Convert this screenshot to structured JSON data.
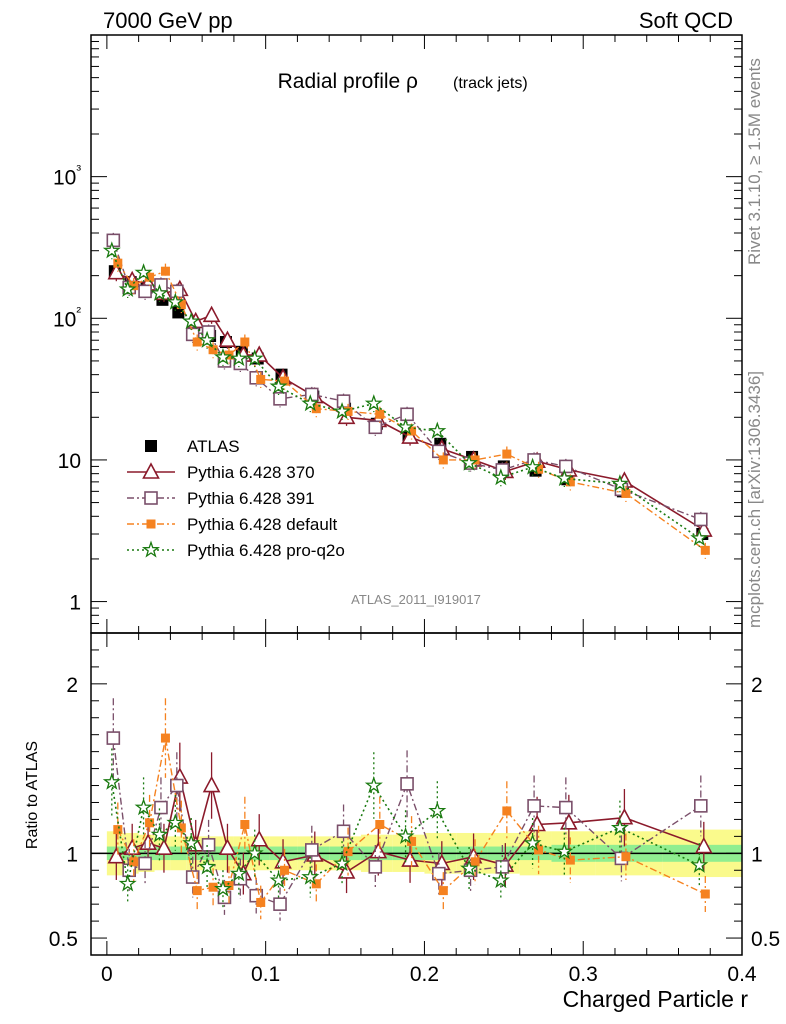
{
  "header": {
    "left": "7000 GeV pp",
    "right": "Soft QCD"
  },
  "side": {
    "top": "Rivet 3.1.10, ≥ 1.5M events",
    "bottom": "mcplots.cern.ch [arXiv:1306.3436]"
  },
  "plot_title": {
    "main": "Radial profile ρ",
    "sub": "(track jets)"
  },
  "analysis_id": "ATLAS_2011_I919017",
  "colors": {
    "ATLAS": "#000000",
    "p370": "#8b1a2b",
    "p391": "#7a4f6a",
    "pdefault": "#f58220",
    "pq2o": "#1a7a10",
    "band_yellow": "#fafa8c",
    "band_green": "#90ee90"
  },
  "chart_data": [
    {
      "type": "scatter",
      "panel": "main",
      "xlabel": "Charged Particle r",
      "ylabel": "",
      "xlim": [
        -0.01,
        0.4
      ],
      "ylim": [
        0.6,
        10000
      ],
      "yscale": "log",
      "xticks": [
        0,
        0.1,
        0.2,
        0.3,
        0.4
      ],
      "xtick_labels": [
        "0",
        "0.1",
        "0.2",
        "0.3",
        "0.4"
      ],
      "ytick_labels": [
        "1",
        "10",
        "10²",
        "10³"
      ],
      "yticks": [
        1,
        10,
        100,
        1000
      ],
      "legend_position": "bottom-left",
      "x": [
        0.005,
        0.015,
        0.025,
        0.035,
        0.045,
        0.055,
        0.065,
        0.075,
        0.085,
        0.095,
        0.11,
        0.13,
        0.15,
        0.17,
        0.19,
        0.21,
        0.23,
        0.25,
        0.27,
        0.29,
        0.325,
        0.375
      ],
      "series": [
        {
          "name": "ATLAS",
          "key": "ATLAS",
          "values": [
            215,
            180,
            165,
            135,
            110,
            90,
            75,
            68,
            58,
            52,
            40,
            28,
            23,
            18,
            15,
            13,
            10.5,
            9,
            8.4,
            7.3,
            6.0,
            3.0
          ]
        },
        {
          "name": "Pythia 6.428 370",
          "key": "p370",
          "values": [
            210,
            185,
            175,
            150,
            160,
            95,
            105,
            70,
            55,
            55,
            38,
            28,
            20,
            19,
            14.5,
            12,
            10,
            8.3,
            9.8,
            8.5,
            7.1,
            3.2
          ]
        },
        {
          "name": "Pythia 6.428 391",
          "key": "p391",
          "values": [
            355,
            165,
            155,
            172,
            155,
            77,
            80,
            50,
            48,
            38,
            27,
            29,
            26,
            17,
            21,
            11.5,
            9.5,
            8.5,
            10,
            9,
            6.2,
            3.8
          ]
        },
        {
          "name": "Pythia 6.428 default",
          "key": "pdefault",
          "values": [
            245,
            170,
            195,
            215,
            125,
            68,
            60,
            55,
            68,
            37,
            36,
            23,
            22,
            21,
            16,
            10,
            10,
            11,
            8.6,
            7,
            5.8,
            2.3
          ]
        },
        {
          "name": "Pythia 6.428 pro-q2o",
          "key": "pq2o",
          "values": [
            300,
            160,
            210,
            150,
            130,
            95,
            70,
            53,
            52,
            52,
            33,
            25,
            22,
            25,
            17,
            16,
            9.5,
            7.5,
            8.9,
            7.4,
            6.8,
            2.8
          ]
        }
      ]
    },
    {
      "type": "scatter",
      "panel": "ratio",
      "xlabel": "Charged Particle r",
      "ylabel": "Ratio to ATLAS",
      "xlim": [
        -0.01,
        0.4
      ],
      "ylim": [
        0.4,
        2.3
      ],
      "yticks": [
        0.5,
        1,
        2
      ],
      "ytick_labels": [
        "0.5",
        "1",
        "2"
      ],
      "x": [
        0.005,
        0.015,
        0.025,
        0.035,
        0.045,
        0.055,
        0.065,
        0.075,
        0.085,
        0.095,
        0.11,
        0.13,
        0.15,
        0.17,
        0.19,
        0.21,
        0.23,
        0.25,
        0.27,
        0.29,
        0.325,
        0.375
      ],
      "band_stat": [
        0.04,
        0.04,
        0.04,
        0.04,
        0.04,
        0.04,
        0.04,
        0.04,
        0.04,
        0.04,
        0.04,
        0.04,
        0.04,
        0.04,
        0.04,
        0.04,
        0.04,
        0.04,
        0.04,
        0.05,
        0.05,
        0.05
      ],
      "band_total": [
        0.13,
        0.12,
        0.11,
        0.1,
        0.1,
        0.1,
        0.1,
        0.1,
        0.1,
        0.1,
        0.1,
        0.1,
        0.1,
        0.11,
        0.11,
        0.12,
        0.12,
        0.12,
        0.13,
        0.13,
        0.13,
        0.14
      ],
      "series": [
        {
          "name": "Pythia 6.428 370",
          "key": "p370",
          "values": [
            0.98,
            1.03,
            1.06,
            1.03,
            1.45,
            1.05,
            1.4,
            1.03,
            0.88,
            1.08,
            0.95,
            0.99,
            0.89,
            1.01,
            0.96,
            0.94,
            0.98,
            0.93,
            1.17,
            1.18,
            1.21,
            1.04
          ]
        },
        {
          "name": "Pythia 6.428 391",
          "key": "p391",
          "values": [
            1.68,
            0.9,
            0.94,
            1.27,
            1.4,
            0.86,
            1.05,
            0.74,
            0.85,
            0.75,
            0.7,
            1.02,
            1.13,
            0.92,
            1.41,
            0.88,
            0.9,
            0.92,
            1.28,
            1.27,
            0.97,
            1.28
          ]
        },
        {
          "name": "Pythia 6.428 default",
          "key": "pdefault",
          "values": [
            1.14,
            0.95,
            1.18,
            1.68,
            1.15,
            0.78,
            0.8,
            0.81,
            1.17,
            0.71,
            0.9,
            0.82,
            1.01,
            1.17,
            1.07,
            0.78,
            0.95,
            1.25,
            1.02,
            0.96,
            0.98,
            0.76
          ]
        },
        {
          "name": "Pythia 6.428 pro-q2o",
          "key": "pq2o",
          "values": [
            1.42,
            0.82,
            1.27,
            1.11,
            1.18,
            1.06,
            0.92,
            0.79,
            0.88,
            1.0,
            0.84,
            0.86,
            0.94,
            1.4,
            1.1,
            1.25,
            0.91,
            0.84,
            1.06,
            1.01,
            1.15,
            0.93
          ]
        }
      ]
    }
  ]
}
